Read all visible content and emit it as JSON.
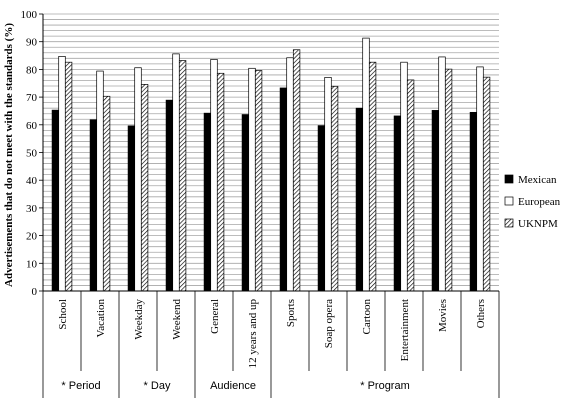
{
  "chart_data": {
    "type": "bar",
    "title": "",
    "xlabel": "",
    "ylabel": "Advertisements that do not meet with the standards (%)",
    "ylim": [
      0,
      100
    ],
    "ytick_step": 10,
    "grid": true,
    "legend_position": "right",
    "categories": [
      "School",
      "Vacation",
      "Weekday",
      "Weekend",
      "General",
      "12 years and up",
      "Sports",
      "Soap opera",
      "Cartoon",
      "Entertainment",
      "Movies",
      "Others"
    ],
    "groups": [
      {
        "label": "* Period",
        "categories": [
          "School",
          "Vacation"
        ]
      },
      {
        "label": "* Day",
        "categories": [
          "Weekday",
          "Weekend"
        ]
      },
      {
        "label": "Audience",
        "categories": [
          "General",
          "12 years and up"
        ]
      },
      {
        "label": "* Program",
        "categories": [
          "Sports",
          "Soap opera",
          "Cartoon",
          "Entertainment",
          "Movies",
          "Others"
        ]
      }
    ],
    "series": [
      {
        "name": "Mexican",
        "fill": "#000000",
        "pattern": "solid",
        "values": [
          65.3,
          61.8,
          59.6,
          68.9,
          64.2,
          63.7,
          73.3,
          59.7,
          66.0,
          63.2,
          65.2,
          64.5
        ]
      },
      {
        "name": "European",
        "fill": "#ffffff",
        "pattern": "outline",
        "values": [
          84.7,
          79.4,
          80.6,
          85.6,
          83.6,
          80.4,
          84.2,
          77.1,
          91.3,
          82.6,
          84.5,
          80.9
        ]
      },
      {
        "name": "UKNPM",
        "fill": "#ffffff",
        "pattern": "diagonal-hatch",
        "values": [
          82.6,
          70.3,
          74.6,
          83.2,
          78.6,
          79.6,
          87.1,
          73.9,
          82.6,
          76.2,
          80.1,
          77.2
        ]
      }
    ]
  }
}
